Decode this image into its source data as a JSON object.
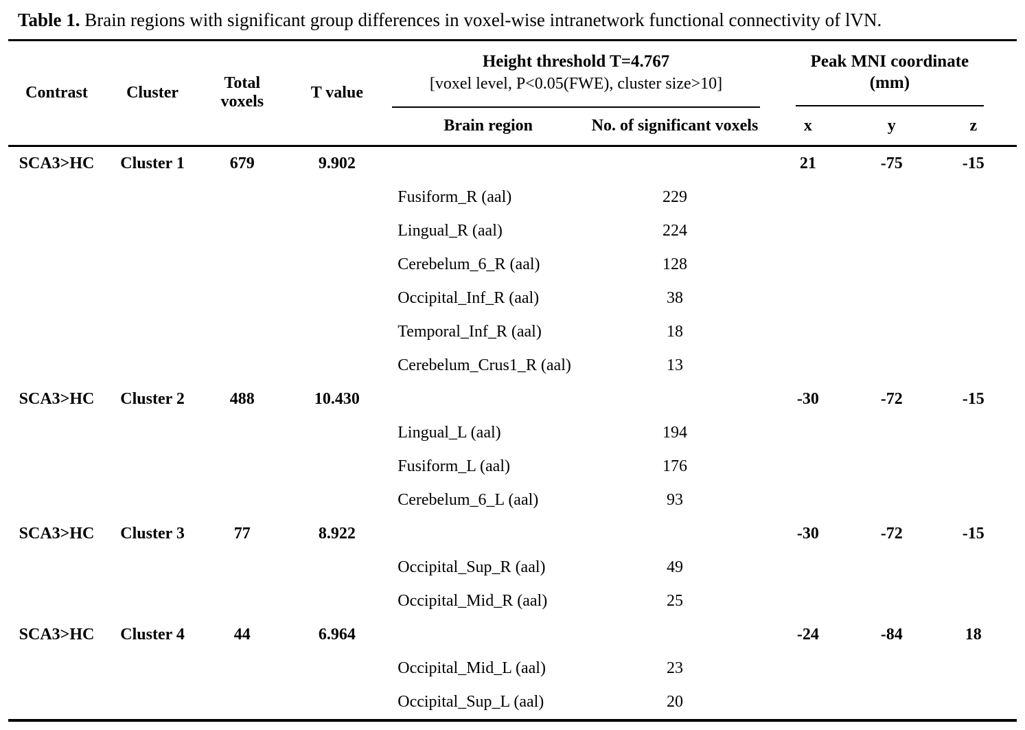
{
  "title": {
    "label": "Table 1.",
    "text": " Brain regions with significant group differences in voxel-wise intranetwork functional connectivity of lVN."
  },
  "header": {
    "contrast": "Contrast",
    "cluster": "Cluster",
    "total_voxels": "Total voxels",
    "t_value": "T value",
    "height_threshold_title": "Height threshold T=4.767",
    "height_threshold_sub": "[voxel level, P<0.05(FWE), cluster size>10]",
    "brain_region": "Brain region",
    "no_sig_voxels": "No. of significant voxels",
    "peak_mni_title": "Peak MNI coordinate",
    "peak_mni_sub": "(mm)",
    "x": "x",
    "y": "y",
    "z": "z"
  },
  "rows": [
    {
      "type": "cluster",
      "contrast": "SCA3>HC",
      "cluster": "Cluster 1",
      "total_voxels": "679",
      "t_value": "9.902",
      "brain_region": "",
      "voxels": "",
      "x": "21",
      "y": "-75",
      "z": "-15"
    },
    {
      "type": "region",
      "contrast": "",
      "cluster": "",
      "total_voxels": "",
      "t_value": "",
      "brain_region": "Fusiform_R (aal)",
      "voxels": "229",
      "x": "",
      "y": "",
      "z": ""
    },
    {
      "type": "region",
      "contrast": "",
      "cluster": "",
      "total_voxels": "",
      "t_value": "",
      "brain_region": "Lingual_R (aal)",
      "voxels": "224",
      "x": "",
      "y": "",
      "z": ""
    },
    {
      "type": "region",
      "contrast": "",
      "cluster": "",
      "total_voxels": "",
      "t_value": "",
      "brain_region": "Cerebelum_6_R (aal)",
      "voxels": "128",
      "x": "",
      "y": "",
      "z": ""
    },
    {
      "type": "region",
      "contrast": "",
      "cluster": "",
      "total_voxels": "",
      "t_value": "",
      "brain_region": "Occipital_Inf_R (aal)",
      "voxels": "38",
      "x": "",
      "y": "",
      "z": ""
    },
    {
      "type": "region",
      "contrast": "",
      "cluster": "",
      "total_voxels": "",
      "t_value": "",
      "brain_region": "Temporal_Inf_R (aal)",
      "voxels": "18",
      "x": "",
      "y": "",
      "z": ""
    },
    {
      "type": "region",
      "contrast": "",
      "cluster": "",
      "total_voxels": "",
      "t_value": "",
      "brain_region": "Cerebelum_Crus1_R (aal)",
      "voxels": "13",
      "x": "",
      "y": "",
      "z": ""
    },
    {
      "type": "cluster",
      "contrast": "SCA3>HC",
      "cluster": "Cluster 2",
      "total_voxels": "488",
      "t_value": "10.430",
      "brain_region": "",
      "voxels": "",
      "x": "-30",
      "y": "-72",
      "z": "-15"
    },
    {
      "type": "region",
      "contrast": "",
      "cluster": "",
      "total_voxels": "",
      "t_value": "",
      "brain_region": "Lingual_L (aal)",
      "voxels": "194",
      "x": "",
      "y": "",
      "z": ""
    },
    {
      "type": "region",
      "contrast": "",
      "cluster": "",
      "total_voxels": "",
      "t_value": "",
      "brain_region": "Fusiform_L (aal)",
      "voxels": "176",
      "x": "",
      "y": "",
      "z": ""
    },
    {
      "type": "region",
      "contrast": "",
      "cluster": "",
      "total_voxels": "",
      "t_value": "",
      "brain_region": "Cerebelum_6_L (aal)",
      "voxels": "93",
      "x": "",
      "y": "",
      "z": ""
    },
    {
      "type": "cluster",
      "contrast": "SCA3>HC",
      "cluster": "Cluster 3",
      "total_voxels": "77",
      "t_value": "8.922",
      "brain_region": "",
      "voxels": "",
      "x": "-30",
      "y": "-72",
      "z": "-15"
    },
    {
      "type": "region",
      "contrast": "",
      "cluster": "",
      "total_voxels": "",
      "t_value": "",
      "brain_region": "Occipital_Sup_R (aal)",
      "voxels": "49",
      "x": "",
      "y": "",
      "z": ""
    },
    {
      "type": "region",
      "contrast": "",
      "cluster": "",
      "total_voxels": "",
      "t_value": "",
      "brain_region": "Occipital_Mid_R (aal)",
      "voxels": "25",
      "x": "",
      "y": "",
      "z": ""
    },
    {
      "type": "cluster",
      "contrast": "SCA3>HC",
      "cluster": "Cluster 4",
      "total_voxels": "44",
      "t_value": "6.964",
      "brain_region": "",
      "voxels": "",
      "x": "-24",
      "y": "-84",
      "z": "18"
    },
    {
      "type": "region",
      "contrast": "",
      "cluster": "",
      "total_voxels": "",
      "t_value": "",
      "brain_region": "Occipital_Mid_L (aal)",
      "voxels": "23",
      "x": "",
      "y": "",
      "z": ""
    },
    {
      "type": "region",
      "contrast": "",
      "cluster": "",
      "total_voxels": "",
      "t_value": "",
      "brain_region": "Occipital_Sup_L (aal)",
      "voxels": "20",
      "x": "",
      "y": "",
      "z": ""
    }
  ]
}
